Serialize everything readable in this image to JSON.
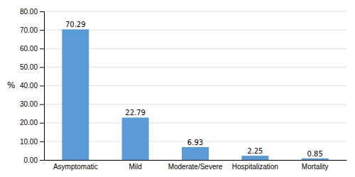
{
  "chart_data": {
    "type": "bar",
    "categories": [
      "Asymptomatic",
      "Mild",
      "Moderate/Severe",
      "Hospitalization",
      "Mortality"
    ],
    "values": [
      70.29,
      22.79,
      6.93,
      2.25,
      0.85
    ],
    "color": "#5B9BD5",
    "ylabel": "%",
    "ylim": [
      0,
      80
    ],
    "yticks": [
      {
        "value": 0.0,
        "label": "0.00"
      },
      {
        "value": 10.0,
        "label": "10.00"
      },
      {
        "value": 20.0,
        "label": "20.00"
      },
      {
        "value": 30.0,
        "label": "30.00"
      },
      {
        "value": 40.0,
        "label": "40.00"
      },
      {
        "value": 50.0,
        "label": "50.00"
      },
      {
        "value": 60.0,
        "label": "60.00"
      },
      {
        "value": 70.0,
        "label": "70.00"
      },
      {
        "value": 80.0,
        "label": "80.00"
      }
    ],
    "grid": true,
    "data_labels": true
  }
}
